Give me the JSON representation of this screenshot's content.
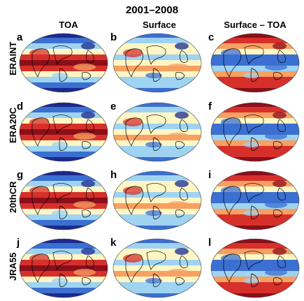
{
  "figure": {
    "title": "2001–2008",
    "columns": [
      "TOA",
      "Surface",
      "Surface – TOA"
    ],
    "rows": [
      "ERAINT",
      "ERA20C",
      "20thCR",
      "JRA55"
    ],
    "panel_letters": [
      "a",
      "b",
      "c",
      "d",
      "e",
      "f",
      "g",
      "h",
      "i",
      "j",
      "k",
      "l"
    ],
    "colormap": [
      "#1a2a8c",
      "#3b6fd1",
      "#9fd3f2",
      "#fff6c4",
      "#f7a061",
      "#d7302a",
      "#8a0f1a"
    ]
  }
}
